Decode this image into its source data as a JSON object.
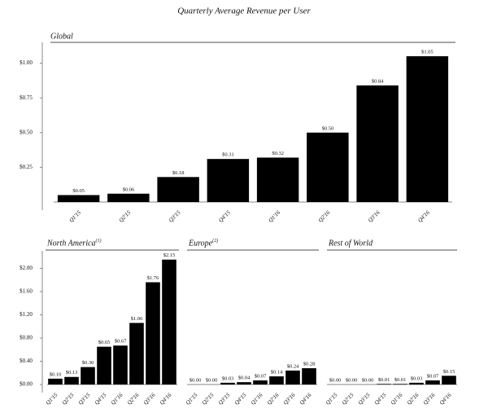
{
  "title": "Quarterly Average Revenue per User",
  "chart_data": [
    {
      "type": "bar",
      "title": "Global",
      "color": "#000000",
      "categories": [
        "Q1'15",
        "Q2'15",
        "Q3'15",
        "Q4'15",
        "Q1'16",
        "Q2'16",
        "Q3'16",
        "Q4'16"
      ],
      "values": [
        0.05,
        0.06,
        0.18,
        0.31,
        0.32,
        0.5,
        0.84,
        1.05
      ],
      "value_labels": [
        "$0.05",
        "$0.06",
        "$0.18",
        "$0.31",
        "$0.32",
        "$0.50",
        "$0.84",
        "$1.05"
      ],
      "ylim": [
        0,
        1.15
      ],
      "yticks": [
        {
          "value": 0.25,
          "label": "$0.25"
        },
        {
          "value": 0.5,
          "label": "$0.50"
        },
        {
          "value": 0.75,
          "label": "$0.75"
        },
        {
          "value": 1.0,
          "label": "$1.00"
        }
      ]
    },
    {
      "type": "bar",
      "title": "North America",
      "title_note": "(1)",
      "color": "#000000",
      "categories": [
        "Q1'15",
        "Q2'15",
        "Q3'15",
        "Q4'15",
        "Q1'16",
        "Q2'16",
        "Q3'16",
        "Q4'16"
      ],
      "values": [
        0.1,
        0.13,
        0.3,
        0.65,
        0.67,
        1.06,
        1.76,
        2.15
      ],
      "value_labels": [
        "$0.10",
        "$0.13",
        "$0.30",
        "$0.65",
        "$0.67",
        "$1.06",
        "$1.76",
        "$2.15"
      ],
      "ylim": [
        0,
        2.3
      ],
      "yticks": [
        {
          "value": 0,
          "label": "$0.00"
        },
        {
          "value": 0.4,
          "label": "$0.40"
        },
        {
          "value": 0.8,
          "label": "$0.80"
        },
        {
          "value": 1.2,
          "label": "$1.20"
        },
        {
          "value": 1.6,
          "label": "$1.60"
        },
        {
          "value": 2.0,
          "label": "$2.00"
        }
      ]
    },
    {
      "type": "bar",
      "title": "Europe",
      "title_note": "(2)",
      "color": "#000000",
      "categories": [
        "Q1'15",
        "Q2'15",
        "Q3'15",
        "Q4'15",
        "Q1'16",
        "Q2'16",
        "Q3'16",
        "Q4'16"
      ],
      "values": [
        0.0,
        0.0,
        0.03,
        0.04,
        0.07,
        0.14,
        0.24,
        0.28
      ],
      "value_labels": [
        "$0.00",
        "$0.00",
        "$0.03",
        "$0.04",
        "$0.07",
        "$0.14",
        "$0.24",
        "$0.28"
      ],
      "ylim": [
        0,
        2.3
      ]
    },
    {
      "type": "bar",
      "title": "Rest of World",
      "color": "#000000",
      "categories": [
        "Q1'15",
        "Q2'15",
        "Q3'15",
        "Q4'15",
        "Q1'16",
        "Q2'16",
        "Q3'16",
        "Q4'16"
      ],
      "values": [
        0.0,
        0.0,
        0.0,
        0.01,
        0.01,
        0.03,
        0.07,
        0.15
      ],
      "value_labels": [
        "$0.00",
        "$0.00",
        "$0.00",
        "$0.01",
        "$0.01",
        "$0.03",
        "$0.07",
        "$0.15"
      ],
      "ylim": [
        0,
        2.3
      ]
    }
  ]
}
